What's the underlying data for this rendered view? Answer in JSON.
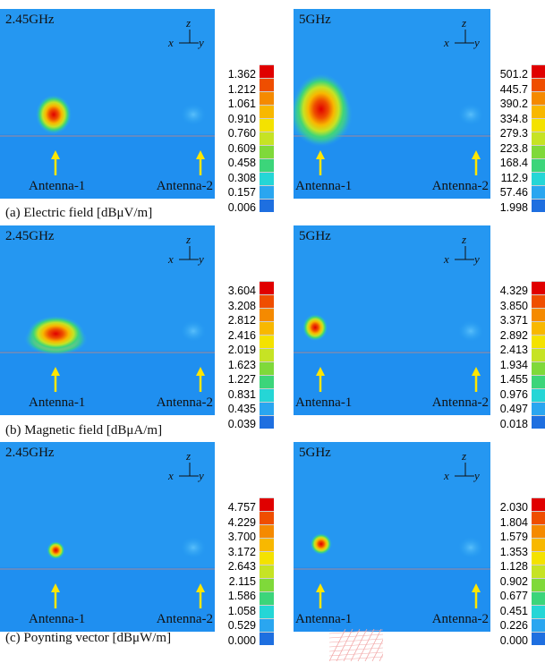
{
  "colors": [
    "#1e6fe0",
    "#2aa6f0",
    "#25d6d6",
    "#3cd57a",
    "#7fd93a",
    "#c6e324",
    "#f4e200",
    "#f8b800",
    "#f58a00",
    "#ef4e00",
    "#e00000"
  ],
  "rows": [
    {
      "caption": "(a) Electric field [dBμV/m]",
      "panels": [
        {
          "freq": "2.45GHz",
          "ticks": [
            "1.362",
            "1.212",
            "1.061",
            "0.910",
            "0.760",
            "0.609",
            "0.458",
            "0.308",
            "0.157",
            "0.006"
          ]
        },
        {
          "freq": "5GHz",
          "ticks": [
            "501.2",
            "445.7",
            "390.2",
            "334.8",
            "279.3",
            "223.8",
            "168.4",
            "112.9",
            "57.46",
            "1.998"
          ]
        }
      ]
    },
    {
      "caption": "(b) Magnetic field [dBμA/m]",
      "panels": [
        {
          "freq": "2.45GHz",
          "ticks": [
            "3.604",
            "3.208",
            "2.812",
            "2.416",
            "2.019",
            "1.623",
            "1.227",
            "0.831",
            "0.435",
            "0.039"
          ]
        },
        {
          "freq": "5GHz",
          "ticks": [
            "4.329",
            "3.850",
            "3.371",
            "2.892",
            "2.413",
            "1.934",
            "1.455",
            "0.976",
            "0.497",
            "0.018"
          ]
        }
      ]
    },
    {
      "caption": "(c) Poynting vector [dBμW/m]",
      "panels": [
        {
          "freq": "2.45GHz",
          "ticks": [
            "4.757",
            "4.229",
            "3.700",
            "3.172",
            "2.643",
            "2.115",
            "1.586",
            "1.058",
            "0.529",
            "0.000"
          ]
        },
        {
          "freq": "5GHz",
          "ticks": [
            "2.030",
            "1.804",
            "1.579",
            "1.353",
            "1.128",
            "0.902",
            "0.677",
            "0.451",
            "0.226",
            "0.000"
          ]
        }
      ]
    }
  ],
  "labels": {
    "antenna1": "Antenna-1",
    "antenna2": "Antenna-2",
    "axis_z": "z",
    "axis_x": "x",
    "axis_y": "y"
  }
}
